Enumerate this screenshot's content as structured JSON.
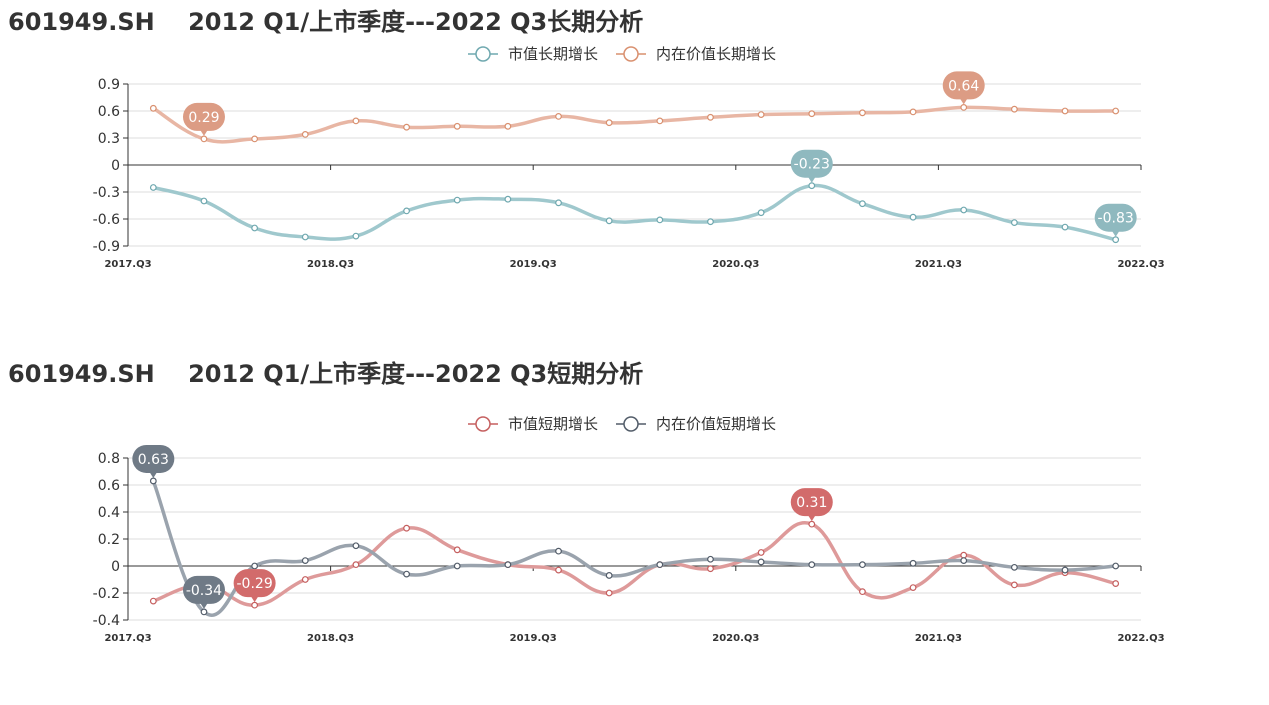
{
  "charts": {
    "long": {
      "title": "601949.SH    2012 Q1/上市季度---2022 Q3长期分析",
      "chart_data": {
        "type": "line",
        "x": [
          "2017.Q3",
          "2017.Q4",
          "2018.Q1",
          "2018.Q2",
          "2018.Q3",
          "2018.Q4",
          "2019.Q1",
          "2019.Q2",
          "2019.Q3",
          "2019.Q4",
          "2020.Q1",
          "2020.Q2",
          "2020.Q3",
          "2020.Q4",
          "2021.Q1",
          "2021.Q2",
          "2021.Q3",
          "2021.Q4",
          "2022.Q1",
          "2022.Q2",
          "2022.Q3"
        ],
        "xticks": [
          "2017.Q3",
          "2018.Q3",
          "2019.Q3",
          "2020.Q3",
          "2021.Q3",
          "2022.Q3"
        ],
        "ylim": [
          -0.9,
          0.9
        ],
        "yticks": [
          0.9,
          0.6,
          0.3,
          0,
          -0.3,
          -0.6,
          -0.9
        ],
        "ytick_labels": [
          "0.9",
          "0.6",
          "0.3",
          "0",
          "-0.3",
          "-0.6",
          "-0.9"
        ],
        "legend_position": "top-center",
        "grid": true,
        "series": [
          {
            "name": "市值长期增长",
            "color": "#9fc8cd",
            "point_color": "#6fa8af",
            "values": [
              -0.25,
              -0.4,
              -0.7,
              -0.8,
              -0.79,
              -0.51,
              -0.39,
              -0.38,
              -0.42,
              -0.62,
              -0.61,
              -0.63,
              -0.53,
              -0.23,
              -0.43,
              -0.58,
              -0.5,
              -0.64,
              -0.69,
              -0.83,
              null
            ]
          },
          {
            "name": "内在价值长期增长",
            "color": "#e8b6a4",
            "point_color": "#d9906f",
            "values": [
              0.63,
              0.29,
              0.29,
              0.34,
              0.49,
              0.42,
              0.43,
              0.43,
              0.54,
              0.47,
              0.49,
              0.53,
              0.56,
              0.57,
              0.58,
              0.59,
              0.64,
              0.62,
              0.6,
              0.6,
              null
            ]
          }
        ],
        "annotations": [
          {
            "series": 1,
            "index": 1,
            "label": "0.29",
            "color": "#dc9c84"
          },
          {
            "series": 1,
            "index": 16,
            "label": "0.64",
            "color": "#dc9c84"
          },
          {
            "series": 0,
            "index": 13,
            "label": "-0.23",
            "color": "#8fb9bf"
          },
          {
            "series": 0,
            "index": 19,
            "label": "-0.83",
            "color": "#8fb9bf"
          }
        ]
      }
    },
    "short": {
      "title": "601949.SH    2012 Q1/上市季度---2022 Q3短期分析",
      "chart_data": {
        "type": "line",
        "x": [
          "2017.Q3",
          "2017.Q4",
          "2018.Q1",
          "2018.Q2",
          "2018.Q3",
          "2018.Q4",
          "2019.Q1",
          "2019.Q2",
          "2019.Q3",
          "2019.Q4",
          "2020.Q1",
          "2020.Q2",
          "2020.Q3",
          "2020.Q4",
          "2021.Q1",
          "2021.Q2",
          "2021.Q3",
          "2021.Q4",
          "2022.Q1",
          "2022.Q2",
          "2022.Q3"
        ],
        "xticks": [
          "2017.Q3",
          "2018.Q3",
          "2019.Q3",
          "2020.Q3",
          "2021.Q3",
          "2022.Q3"
        ],
        "ylim": [
          -0.4,
          0.8
        ],
        "yticks": [
          0.8,
          0.6,
          0.4,
          0.2,
          0,
          -0.2,
          -0.4
        ],
        "ytick_labels": [
          "0.8",
          "0.6",
          "0.4",
          "0.2",
          "0",
          "-0.2",
          "-0.4"
        ],
        "legend_position": "top-center",
        "grid": true,
        "series": [
          {
            "name": "市值短期增长",
            "color": "#de9a9a",
            "point_color": "#c55f5f",
            "values": [
              -0.26,
              -0.14,
              -0.29,
              -0.1,
              0.01,
              0.28,
              0.12,
              0.01,
              -0.03,
              -0.2,
              0.01,
              -0.02,
              0.1,
              0.31,
              -0.19,
              -0.16,
              0.08,
              -0.14,
              -0.05,
              -0.13,
              null
            ]
          },
          {
            "name": "内在价值短期增长",
            "color": "#9aa3ad",
            "point_color": "#525c69",
            "values": [
              0.63,
              -0.34,
              0.0,
              0.04,
              0.15,
              -0.06,
              0.0,
              0.01,
              0.11,
              -0.07,
              0.01,
              0.05,
              0.03,
              0.01,
              0.01,
              0.02,
              0.04,
              -0.01,
              -0.03,
              0.0,
              null
            ]
          }
        ],
        "annotations": [
          {
            "series": 1,
            "index": 0,
            "label": "0.63",
            "color": "#6f7a86"
          },
          {
            "series": 1,
            "index": 1,
            "label": "-0.34",
            "color": "#6f7a86"
          },
          {
            "series": 0,
            "index": 2,
            "label": "-0.29",
            "color": "#d26b6b"
          },
          {
            "series": 0,
            "index": 13,
            "label": "0.31",
            "color": "#d26b6b"
          }
        ]
      }
    }
  }
}
